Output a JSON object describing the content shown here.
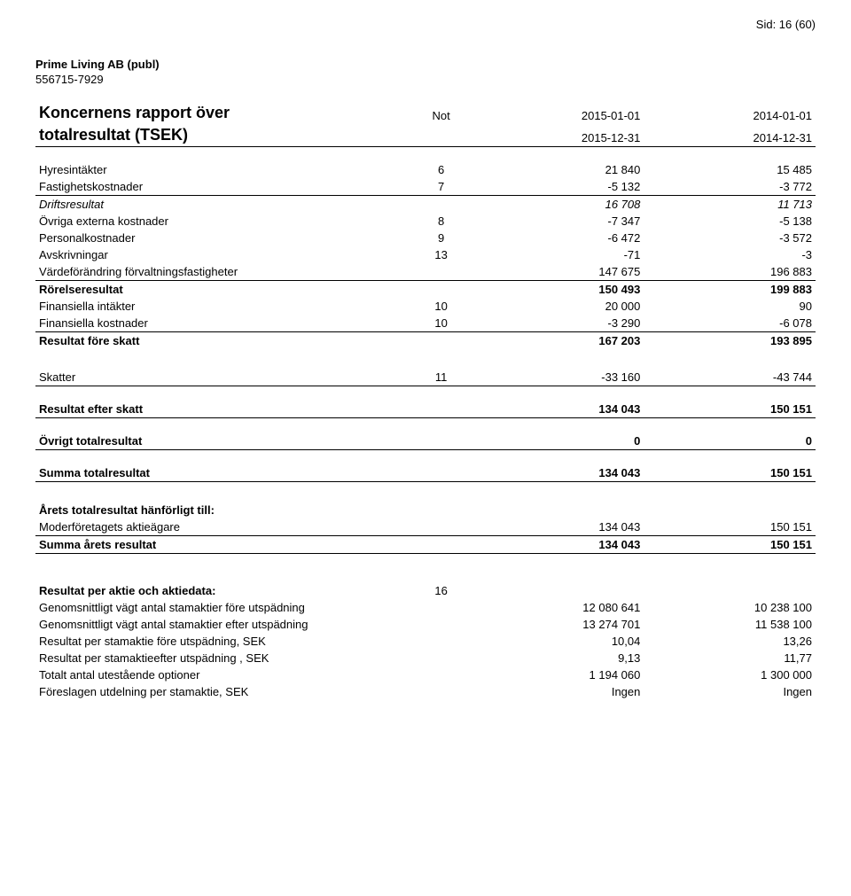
{
  "page_header": "Sid: 16 (60)",
  "company": {
    "name": "Prime Living AB (publ)",
    "org": "556715-7929"
  },
  "title_l1": "Koncernens rapport över",
  "title_l2": "totalresultat (TSEK)",
  "note_label": "Not",
  "period_start": [
    "2015-01-01",
    "2014-01-01"
  ],
  "period_end": [
    "2015-12-31",
    "2014-12-31"
  ],
  "rows": {
    "hyres": {
      "label": "Hyresintäkter",
      "note": "6",
      "v1": "21 840",
      "v2": "15 485"
    },
    "fastig": {
      "label": "Fastighetskostnader",
      "note": "7",
      "v1": "-5 132",
      "v2": "-3 772"
    },
    "drifts": {
      "label": "Driftsresultat",
      "note": "",
      "v1": "16 708",
      "v2": "11 713"
    },
    "ovriga": {
      "label": "Övriga externa kostnader",
      "note": "8",
      "v1": "-7 347",
      "v2": "-5 138"
    },
    "pers": {
      "label": "Personalkostnader",
      "note": "9",
      "v1": "-6 472",
      "v2": "-3 572"
    },
    "avskr": {
      "label": "Avskrivningar",
      "note": "13",
      "v1": "-71",
      "v2": "-3"
    },
    "vardef": {
      "label": "Värdeförändring förvaltningsfastigheter",
      "note": "",
      "v1": "147 675",
      "v2": "196 883"
    },
    "rorelse": {
      "label": "Rörelseresultat",
      "note": "",
      "v1": "150 493",
      "v2": "199 883"
    },
    "finint": {
      "label": "Finansiella intäkter",
      "note": "10",
      "v1": "20 000",
      "v2": "90"
    },
    "finkost": {
      "label": "Finansiella kostnader",
      "note": "10",
      "v1": "-3 290",
      "v2": "-6 078"
    },
    "resfore": {
      "label": "Resultat före skatt",
      "note": "",
      "v1": "167 203",
      "v2": "193 895"
    },
    "skatter": {
      "label": "Skatter",
      "note": "11",
      "v1": "-33 160",
      "v2": "-43 744"
    },
    "reseft": {
      "label": "Resultat efter skatt",
      "note": "",
      "v1": "134 043",
      "v2": "150 151"
    },
    "ovrigt": {
      "label": "Övrigt totalresultat",
      "note": "",
      "v1": "0",
      "v2": "0"
    },
    "summa": {
      "label": "Summa totalresultat",
      "note": "",
      "v1": "134 043",
      "v2": "150 151"
    },
    "hanhdr": {
      "label": "Årets totalresultat hänförligt till:"
    },
    "moder": {
      "label": "Moderföretagets aktieägare",
      "note": "",
      "v1": "134 043",
      "v2": "150 151"
    },
    "summar": {
      "label": "Summa årets resultat",
      "note": "",
      "v1": "134 043",
      "v2": "150 151"
    },
    "aktie_hdr": {
      "label": "Resultat per aktie och aktiedata:",
      "note": "16"
    },
    "g1": {
      "label": "Genomsnittligt vägt antal stamaktier före utspädning",
      "v1": "12 080 641",
      "v2": "10 238 100"
    },
    "g2": {
      "label": "Genomsnittligt vägt antal stamaktier efter utspädning",
      "v1": "13 274 701",
      "v2": "11 538 100"
    },
    "rps1": {
      "label": "Resultat per stamaktie före utspädning, SEK",
      "v1": "10,04",
      "v2": "13,26"
    },
    "rps2": {
      "label": "Resultat per stamaktieefter utspädning , SEK",
      "v1": "9,13",
      "v2": "11,77"
    },
    "opt": {
      "label": "Totalt antal utestående optioner",
      "v1": "1 194 060",
      "v2": "1 300 000"
    },
    "utd": {
      "label": "Föreslagen utdelning per stamaktie, SEK",
      "v1": "Ingen",
      "v2": "Ingen"
    }
  }
}
